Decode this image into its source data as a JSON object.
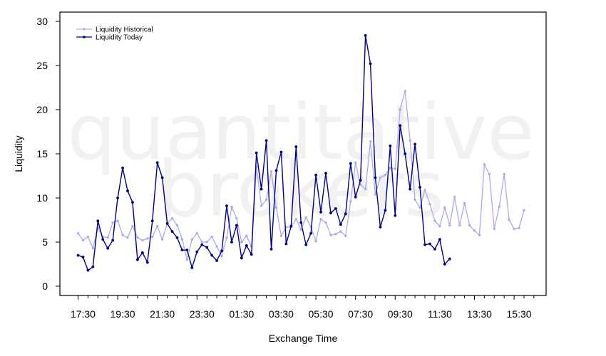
{
  "watermark": {
    "line1": "quantitative",
    "line2": "brokers"
  },
  "chart_data": {
    "type": "line",
    "xlabel": "Exchange Time",
    "ylabel": "Liquidity",
    "ylim": [
      0,
      30
    ],
    "yticks": [
      0,
      5,
      10,
      15,
      20,
      25,
      30
    ],
    "x_tick_labels": [
      "17:30",
      "19:30",
      "21:30",
      "23:30",
      "01:30",
      "03:30",
      "05:30",
      "07:30",
      "09:30",
      "11:30",
      "13:30",
      "15:30"
    ],
    "x_tick_index_step": 8,
    "legend_position": "top-left",
    "grid": false,
    "series": [
      {
        "name": "Liquidity Historical",
        "color": "#aaaaee",
        "values": [
          6.0,
          5.2,
          5.6,
          4.3,
          6.6,
          5.6,
          5.5,
          7.2,
          7.4,
          5.8,
          5.5,
          6.8,
          5.5,
          5.2,
          5.4,
          5.6,
          6.8,
          5.3,
          7.1,
          7.7,
          6.9,
          5.3,
          3.0,
          5.3,
          6.0,
          5.0,
          5.0,
          5.6,
          4.5,
          3.4,
          5.5,
          9.0,
          7.7,
          5.0,
          5.7,
          4.5,
          13.5,
          9.1,
          9.8,
          13.0,
          8.9,
          5.7,
          6.7,
          6.7,
          7.6,
          6.4,
          7.8,
          6.7,
          5.1,
          7.6,
          7.2,
          5.8,
          5.9,
          6.2,
          5.7,
          9.6,
          14.0,
          11.5,
          11.0,
          16.4,
          10.4,
          12.3,
          12.6,
          13.4,
          13.3,
          20.0,
          22.1,
          16.5,
          9.8,
          8.9,
          10.9,
          9.3,
          7.4,
          6.8,
          8.9,
          6.9,
          10.1,
          6.9,
          9.4,
          6.9,
          6.3,
          5.8,
          13.8,
          12.7,
          6.5,
          9.0,
          12.7,
          7.5,
          6.5,
          6.6,
          8.6
        ]
      },
      {
        "name": "Liquidity Today",
        "color": "#000080",
        "values": [
          3.5,
          3.3,
          1.8,
          2.2,
          7.4,
          5.3,
          4.3,
          5.2,
          10.0,
          13.4,
          10.8,
          9.5,
          3.0,
          3.8,
          2.7,
          7.4,
          14.0,
          12.3,
          7.1,
          6.2,
          5.5,
          4.1,
          4.1,
          2.1,
          3.9,
          4.7,
          4.4,
          3.5,
          2.9,
          4.0,
          9.1,
          5.0,
          6.9,
          3.2,
          4.6,
          3.6,
          15.1,
          11.0,
          16.5,
          4.2,
          13.1,
          15.2,
          4.8,
          6.8,
          15.8,
          7.2,
          4.7,
          6.0,
          12.6,
          8.4,
          12.8,
          8.3,
          8.8,
          7.0,
          8.2,
          13.9,
          10.1,
          12.0,
          28.4,
          25.2,
          12.3,
          6.7,
          8.6,
          15.9,
          8.0,
          18.2,
          15.0,
          11.0,
          16.1,
          11.2,
          4.7,
          4.8,
          4.2,
          5.3,
          2.5,
          3.1
        ]
      }
    ]
  }
}
